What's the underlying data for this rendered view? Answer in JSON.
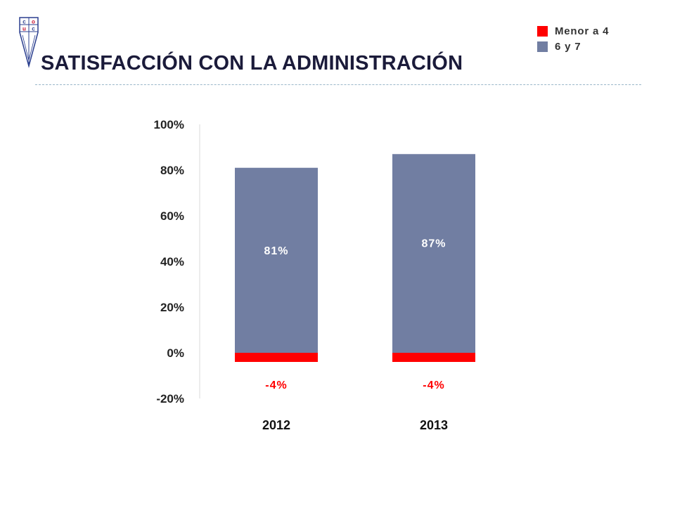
{
  "title": "SATISFACCIÓN CON LA ADMINISTRACIÓN",
  "logo": {
    "icon": "university-shield-icon",
    "letters": [
      "c",
      "o",
      "u",
      "c"
    ],
    "colors": {
      "blue": "#2b3f8f",
      "red": "#c8102e"
    }
  },
  "legend": {
    "items": [
      {
        "label": "Menor a 4",
        "color": "#ff0000"
      },
      {
        "label": "6 y 7",
        "color": "#717ea2"
      }
    ]
  },
  "chart_data": {
    "type": "bar",
    "stacked": true,
    "categories": [
      "2012",
      "2013"
    ],
    "series": [
      {
        "name": "Menor a 4",
        "values": [
          -4,
          -4
        ],
        "labels": [
          "-4%",
          "-4%"
        ],
        "color": "#ff0000"
      },
      {
        "name": "6 y 7",
        "values": [
          81,
          87
        ],
        "labels": [
          "81%",
          "87%"
        ],
        "color": "#717ea2"
      }
    ],
    "ylim": [
      -20,
      100
    ],
    "yticks": [
      100,
      80,
      60,
      40,
      20,
      0,
      -20
    ],
    "ytick_labels": [
      "100%",
      "80%",
      "60%",
      "40%",
      "20%",
      "0%",
      "-20%"
    ],
    "xlabel": "",
    "ylabel": "",
    "grid": false,
    "legend_position": "top-right"
  }
}
